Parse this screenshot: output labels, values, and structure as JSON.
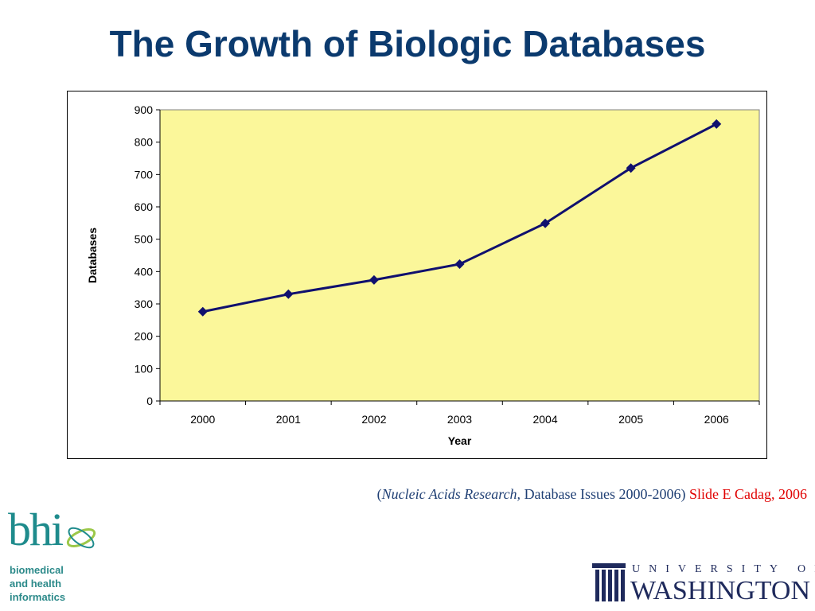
{
  "slide": {
    "title": "The Growth of Biologic Databases"
  },
  "citation": {
    "open_paren": "(",
    "journal": "Nucleic Acids Research,",
    "rest": " Database Issues 2000-2006)",
    "credit": " Slide E Cadag, 2006"
  },
  "logos": {
    "bhi_word": "bhi",
    "bhi_line1": "biomedical",
    "bhi_line2": "and health",
    "bhi_line3": "informatics",
    "uw_univ": "UNIVERSITY OF",
    "uw_wash": "WASHINGTON"
  },
  "colors": {
    "title": "#0b3a6e",
    "plot_bg": "#fbf79a",
    "series": "#10106e",
    "credit": "#e00000"
  },
  "chart_data": {
    "type": "line",
    "categories": [
      "2000",
      "2001",
      "2002",
      "2003",
      "2004",
      "2005",
      "2006"
    ],
    "series": [
      {
        "values": [
          276,
          330,
          374,
          423,
          549,
          720,
          856
        ]
      }
    ],
    "xlabel": "Year",
    "ylabel": "Databases",
    "ylim": [
      0,
      900
    ],
    "yticks": [
      0,
      100,
      200,
      300,
      400,
      500,
      600,
      700,
      800,
      900
    ],
    "marker": "diamond",
    "grid": false,
    "legend": "none"
  }
}
